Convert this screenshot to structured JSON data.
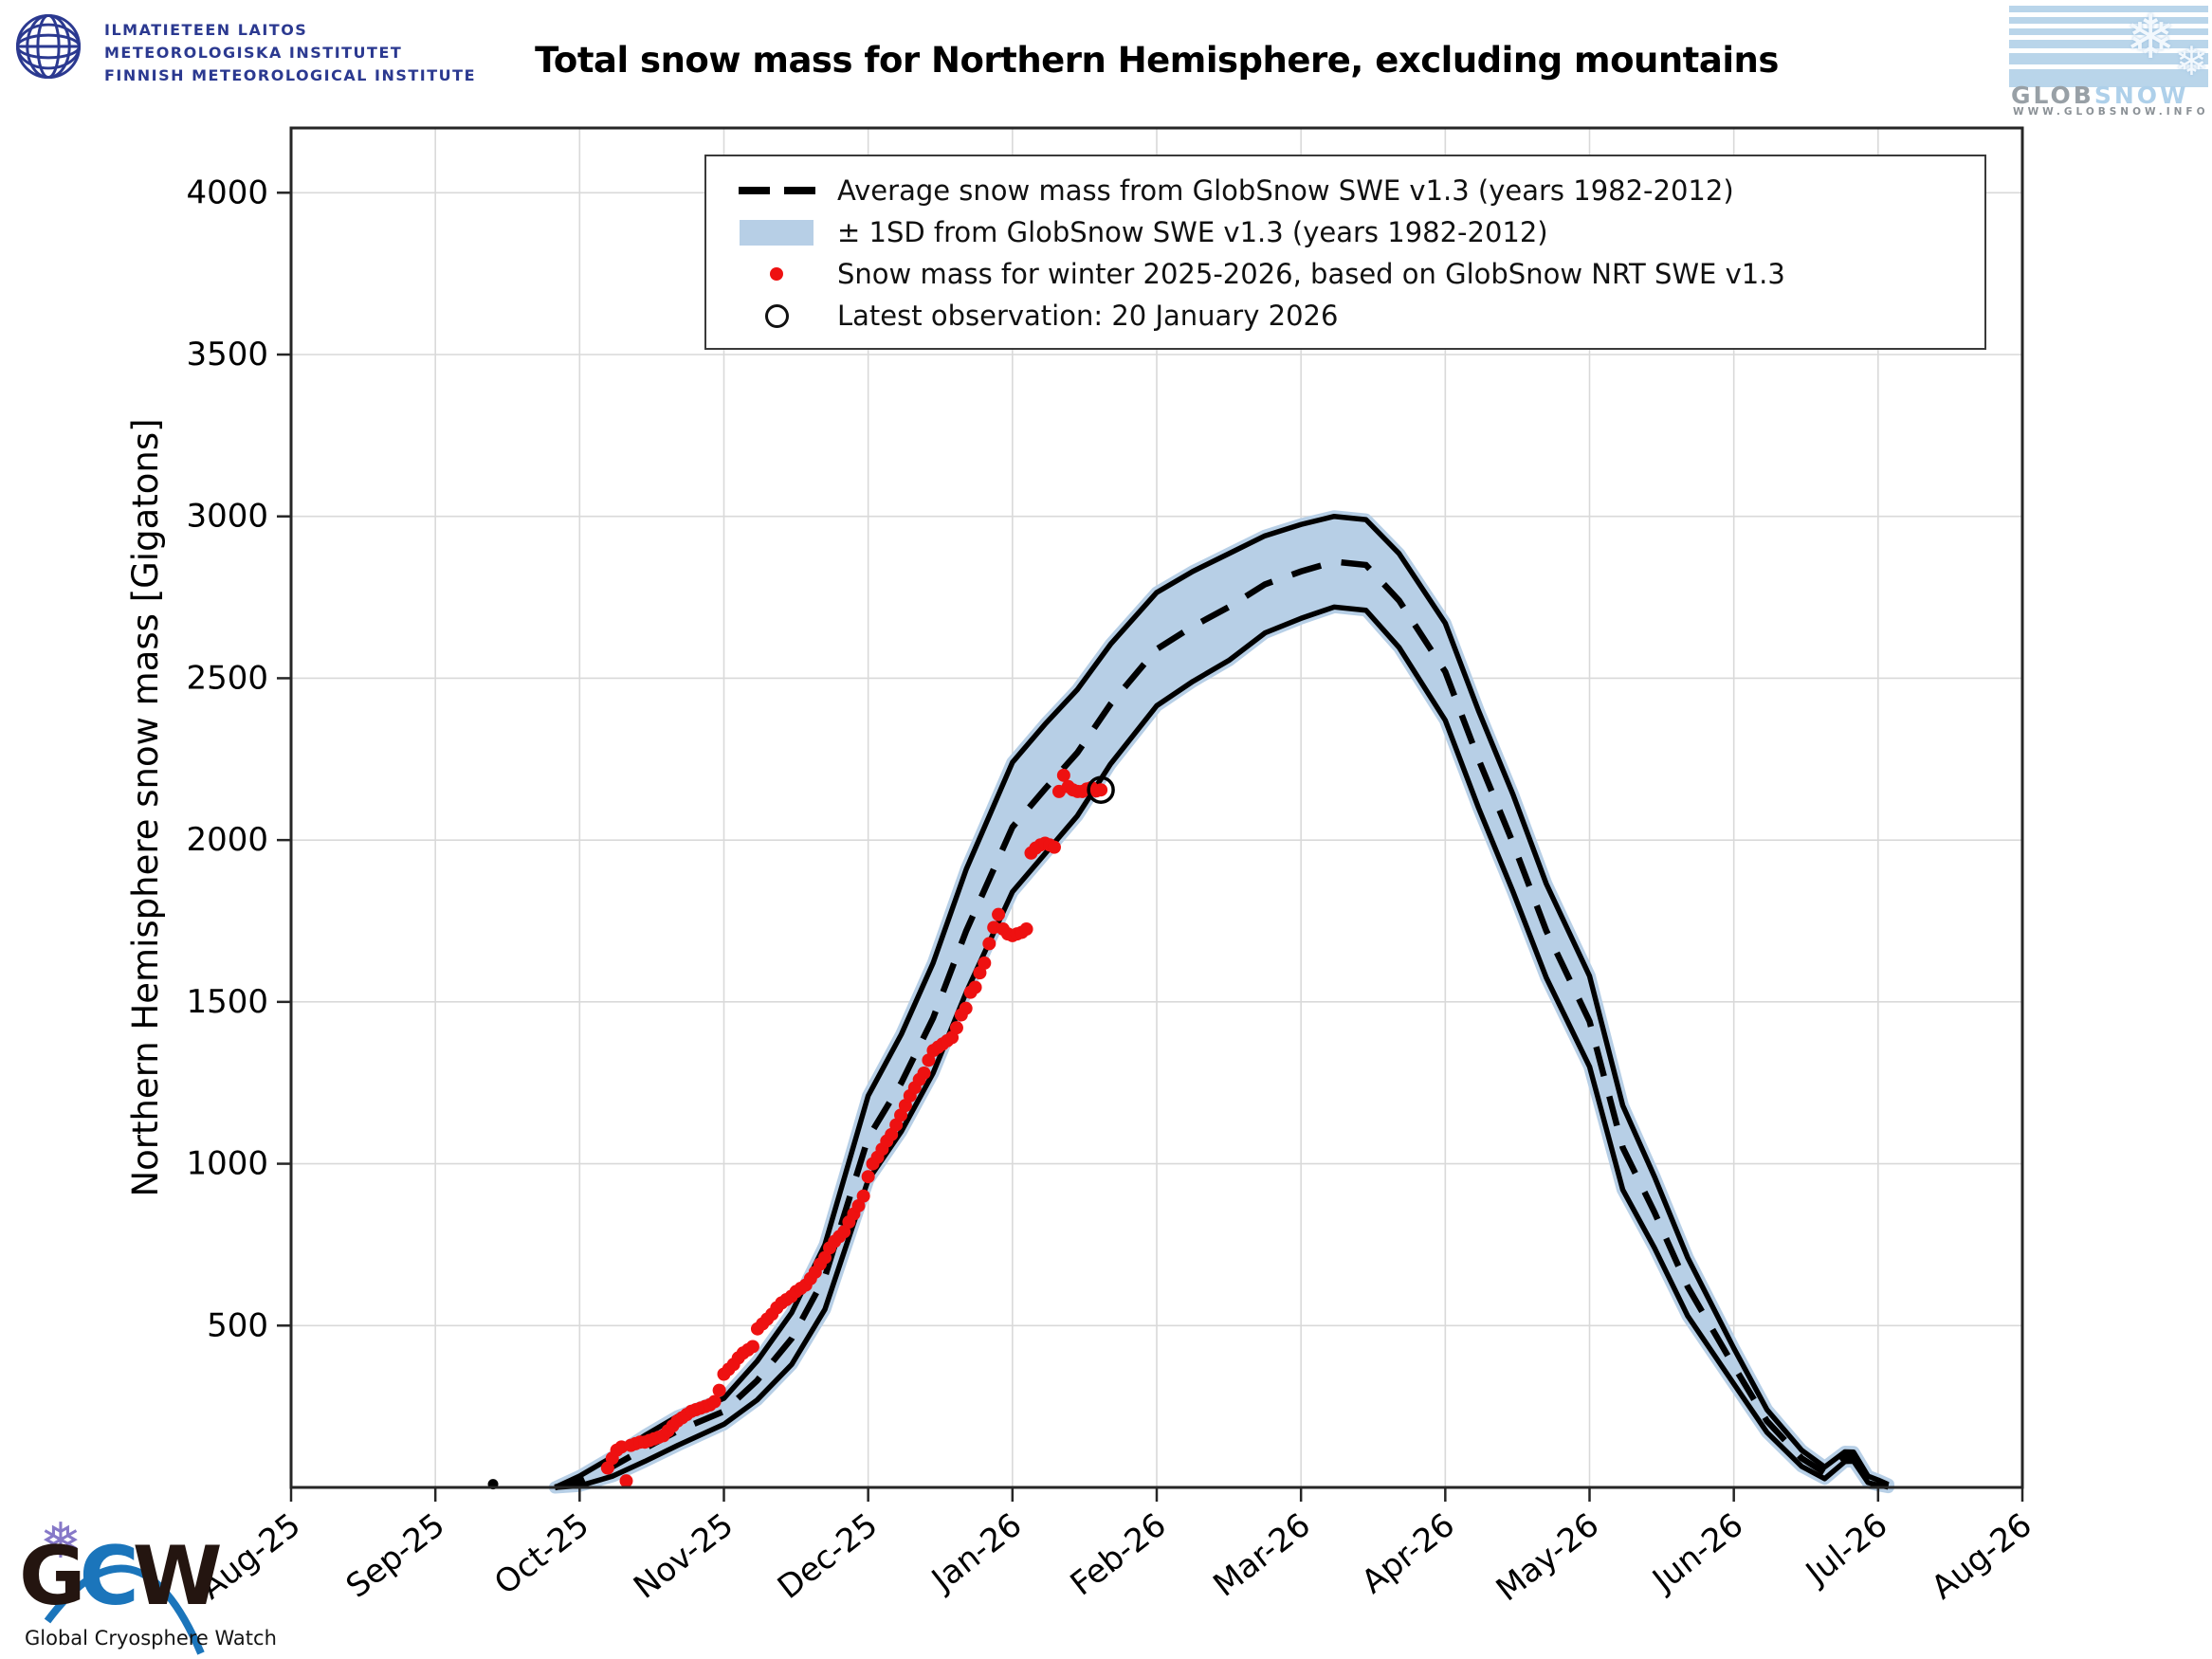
{
  "header": {
    "fmi_logo_lines": [
      "ILMATIETEEN LAITOS",
      "METEOROLOGISKA INSTITUTET",
      "FINNISH METEOROLOGICAL INSTITUTE"
    ],
    "globsnow_logo": {
      "word_gray": "GLOB",
      "word_blue": "SNOW",
      "url": "WWW.GLOBSNOW.INFO",
      "flake_icon": "snowflake"
    }
  },
  "footer": {
    "gcw_logo": {
      "letter_g": "G",
      "letter_c": "C",
      "letter_w": "W",
      "caption": "Global Cryosphere Watch",
      "flake_icon": "snowflake"
    }
  },
  "chart_data": {
    "type": "line",
    "title": "Total snow mass for Northern Hemisphere, excluding mountains",
    "xlabel": "",
    "ylabel": "Northern Hemisphere snow mass [Gigatons]",
    "x_unit": "months since 1 Aug 2025 (0 = Aug-25, 12 = Aug-26)",
    "ylim": [
      0,
      4200
    ],
    "yticks": [
      500,
      1000,
      1500,
      2000,
      2500,
      3000,
      3500,
      4000
    ],
    "xticklabels": [
      "Aug-25",
      "Sep-25",
      "Oct-25",
      "Nov-25",
      "Dec-25",
      "Jan-26",
      "Feb-26",
      "Mar-26",
      "Apr-26",
      "May-26",
      "Jun-26",
      "Jul-26",
      "Aug-26"
    ],
    "grid": true,
    "legend_position": "upper center",
    "legend": [
      {
        "symbol": "dashed-line",
        "label": "Average snow mass from GlobSnow SWE v1.3 (years 1982-2012)"
      },
      {
        "symbol": "band-patch",
        "label": "± 1SD from GlobSnow SWE v1.3 (years 1982-2012)"
      },
      {
        "symbol": "red-dot",
        "label": "Snow mass for winter 2025-2026, based on GlobSnow NRT SWE v1.3"
      },
      {
        "symbol": "open-circle",
        "label": "Latest observation: 20 January 2026"
      }
    ],
    "series": [
      {
        "name": "average_snow_mass_1982_2012",
        "style": "dashed-black",
        "x": [
          1.83,
          2.0,
          2.23,
          2.45,
          2.68,
          3.0,
          3.23,
          3.47,
          3.7,
          4.0,
          4.23,
          4.45,
          4.68,
          5.0,
          5.23,
          5.45,
          5.68,
          6.0,
          6.25,
          6.5,
          6.75,
          7.0,
          7.23,
          7.45,
          7.68,
          8.0,
          8.23,
          8.47,
          8.7,
          9.0,
          9.23,
          9.45,
          9.68,
          10.0,
          10.23,
          10.47,
          10.63,
          10.77,
          10.83,
          10.93,
          11.0,
          11.07
        ],
        "values": [
          0,
          20,
          65,
          120,
          175,
          235,
          330,
          460,
          650,
          1080,
          1250,
          1450,
          1720,
          2040,
          2160,
          2270,
          2420,
          2590,
          2660,
          2720,
          2790,
          2830,
          2860,
          2850,
          2740,
          2520,
          2250,
          1990,
          1720,
          1440,
          1050,
          850,
          620,
          375,
          205,
          90,
          45,
          95,
          95,
          25,
          15,
          5
        ],
        "sd": [
          0,
          15,
          30,
          40,
          45,
          40,
          60,
          80,
          100,
          130,
          150,
          170,
          190,
          200,
          200,
          195,
          185,
          175,
          170,
          165,
          150,
          145,
          140,
          140,
          145,
          150,
          150,
          150,
          145,
          140,
          130,
          110,
          90,
          55,
          35,
          25,
          18,
          15,
          14,
          10,
          8,
          4
        ]
      },
      {
        "name": "winter_2025_2026_nrt",
        "style": "red-dots",
        "x": [
          2.194,
          2.226,
          2.258,
          2.29,
          2.323,
          2.355,
          2.387,
          2.419,
          2.452,
          2.484,
          2.516,
          2.548,
          2.581,
          2.613,
          2.645,
          2.677,
          2.71,
          2.742,
          2.774,
          2.806,
          2.839,
          2.871,
          2.903,
          2.935,
          2.968,
          3.0,
          3.033,
          3.067,
          3.1,
          3.133,
          3.167,
          3.2,
          3.233,
          3.267,
          3.3,
          3.333,
          3.367,
          3.4,
          3.433,
          3.467,
          3.5,
          3.533,
          3.567,
          3.6,
          3.633,
          3.667,
          3.7,
          3.733,
          3.767,
          3.8,
          3.833,
          3.867,
          3.9,
          3.933,
          3.967,
          4.0,
          4.032,
          4.065,
          4.097,
          4.129,
          4.161,
          4.194,
          4.226,
          4.258,
          4.29,
          4.323,
          4.355,
          4.387,
          4.419,
          4.452,
          4.484,
          4.516,
          4.548,
          4.581,
          4.613,
          4.645,
          4.677,
          4.71,
          4.742,
          4.774,
          4.806,
          4.839,
          4.871,
          4.903,
          4.935,
          4.968,
          5.0,
          5.032,
          5.065,
          5.097,
          5.129,
          5.161,
          5.194,
          5.226,
          5.258,
          5.29,
          5.323,
          5.355,
          5.387,
          5.419,
          5.452,
          5.484,
          5.516,
          5.548,
          5.581,
          5.613
        ],
        "values": [
          60,
          90,
          115,
          125,
          20,
          130,
          135,
          140,
          140,
          145,
          150,
          155,
          160,
          175,
          190,
          205,
          215,
          225,
          235,
          240,
          245,
          250,
          255,
          265,
          300,
          350,
          365,
          380,
          400,
          415,
          425,
          435,
          490,
          505,
          520,
          535,
          555,
          570,
          580,
          590,
          605,
          615,
          625,
          645,
          665,
          690,
          710,
          740,
          760,
          775,
          790,
          820,
          845,
          870,
          900,
          960,
          1000,
          1020,
          1045,
          1070,
          1090,
          1120,
          1150,
          1180,
          1210,
          1235,
          1260,
          1280,
          1320,
          1350,
          1360,
          1370,
          1380,
          1390,
          1420,
          1460,
          1480,
          1530,
          1545,
          1590,
          1620,
          1680,
          1730,
          1770,
          1725,
          1710,
          1705,
          1710,
          1715,
          1725,
          1960,
          1975,
          1985,
          1990,
          1985,
          1978,
          2150,
          2200,
          2165,
          2155,
          2150,
          2150,
          2158,
          2162,
          2152,
          2155
        ]
      },
      {
        "name": "latest_observation",
        "style": "open-circle",
        "date_label": "20 January 2026",
        "x": 5.613,
        "value": 2155
      },
      {
        "name": "preseason_blip",
        "style": "black-dot",
        "x": 1.4,
        "value": 10
      }
    ],
    "colors": {
      "band_fill": "#b7cfe6",
      "mean_line": "#000000",
      "observation": "#ee1111",
      "grid": "#d9d9d9",
      "axes": "#262626",
      "fmi_blue": "#2b3990",
      "gcw_blue": "#1b75bb"
    }
  }
}
